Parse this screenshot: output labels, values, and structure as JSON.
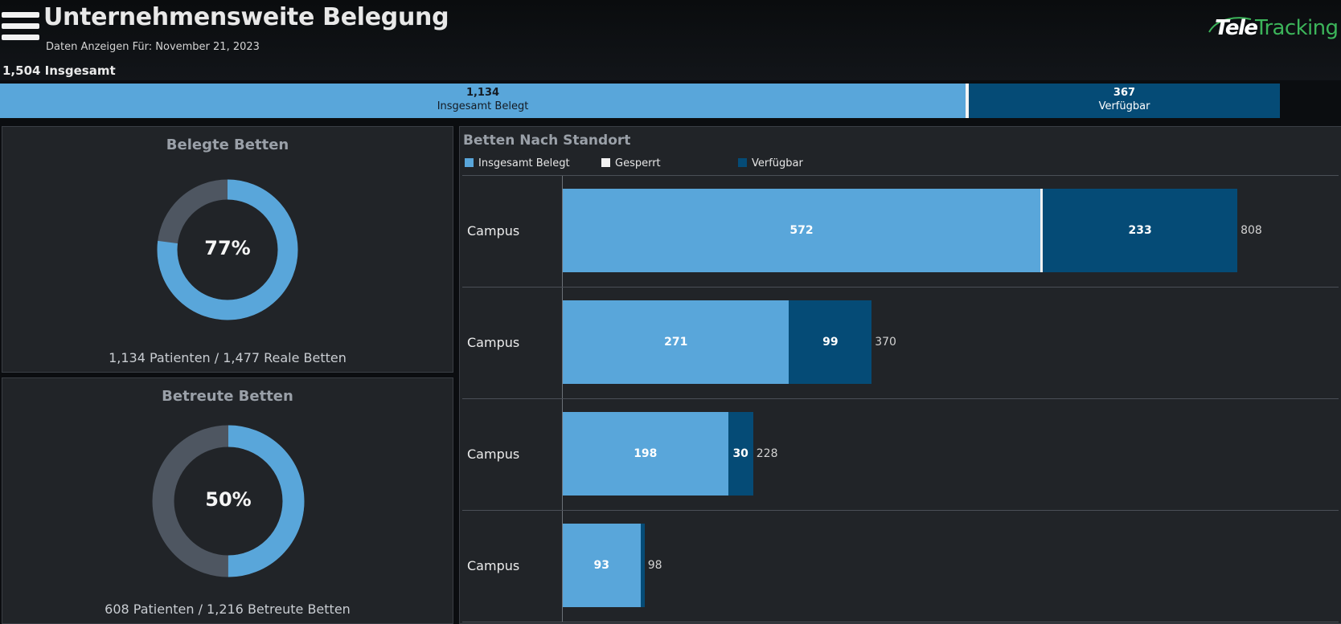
{
  "header": {
    "title": "Unternehmensweite Belegung",
    "subtitle": "Daten Anzeigen Für: November 21, 2023",
    "total_label": "1,504 Insgesamt"
  },
  "logo": {
    "part1": "Tele",
    "part2": "Tracking"
  },
  "summary_bar": {
    "occupied": {
      "value": "1,134",
      "label": "Insgesamt Belegt"
    },
    "available": {
      "value": "367",
      "label": "Verfügbar"
    }
  },
  "occupied_beds": {
    "title": "Belegte Betten",
    "percent_label": "77%",
    "percent": 0.77,
    "caption": "1,134 Patienten  / 1,477 Reale Betten"
  },
  "staffed_beds": {
    "title": "Betreute Betten",
    "percent_label": "50%",
    "percent": 0.5,
    "caption": "608 Patienten  / 1,216 Betreute Betten"
  },
  "beds_by_location": {
    "title": "Betten Nach Standort",
    "legend": [
      {
        "label": "Insgesamt Belegt",
        "color": "#59a6da"
      },
      {
        "label": "Gesperrt",
        "color": "#f2f2f2"
      },
      {
        "label": "Verfügbar",
        "color": "#054b76"
      }
    ]
  },
  "chart_data": {
    "type": "bar",
    "orientation": "horizontal",
    "stacked": true,
    "title": "Betten Nach Standort",
    "categories": [
      "Campus",
      "Campus",
      "Campus",
      "Campus"
    ],
    "series": [
      {
        "name": "Insgesamt Belegt",
        "values": [
          572,
          271,
          198,
          93
        ],
        "color": "#59a6da"
      },
      {
        "name": "Gesperrt",
        "values": [
          3,
          0,
          0,
          0
        ],
        "color": "#f2f2f2"
      },
      {
        "name": "Verfügbar",
        "values": [
          233,
          99,
          30,
          5
        ],
        "color": "#054b76"
      }
    ],
    "totals": [
      808,
      370,
      228,
      98
    ],
    "legend_position": "top-left",
    "grid": false
  }
}
